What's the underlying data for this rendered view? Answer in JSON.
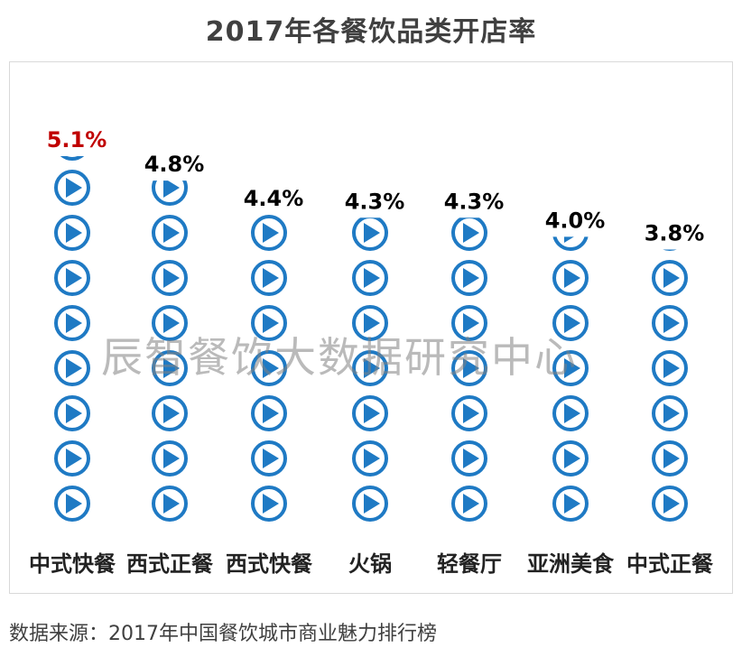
{
  "chart_data": {
    "type": "bar",
    "title": "2017年各餐饮品类开店率",
    "categories": [
      "中式快餐",
      "西式正餐",
      "西式快餐",
      "火锅",
      "轻餐厅",
      "亚洲美食",
      "中式正餐"
    ],
    "values": [
      5.1,
      4.8,
      4.4,
      4.3,
      4.3,
      4.0,
      3.8
    ],
    "value_labels": [
      "5.1%",
      "4.8%",
      "4.4%",
      "4.3%",
      "4.3%",
      "4.0%",
      "3.8%"
    ],
    "highlight_index": 0,
    "mark_style": "stacked play-button icons (pictograph bars)",
    "xlabel": "",
    "ylabel": "",
    "grid": false,
    "legend": "none"
  },
  "colors": {
    "icon": "#1f7ac4",
    "highlight_label": "#c00000",
    "label": "#000000",
    "title": "#404040"
  },
  "watermark": "辰智餐饮大数据研究中心",
  "source": "数据来源：2017年中国餐饮城市商业魅力排行榜"
}
